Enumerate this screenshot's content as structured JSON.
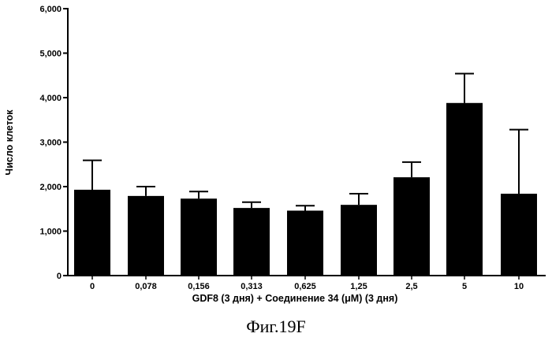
{
  "chart_data": {
    "type": "bar",
    "categories": [
      "0",
      "0,078",
      "0,156",
      "0,313",
      "0,625",
      "1,25",
      "2,5",
      "5",
      "10"
    ],
    "values": [
      1930,
      1790,
      1730,
      1520,
      1460,
      1590,
      2210,
      3880,
      1840
    ],
    "error_upper": [
      2590,
      2000,
      1890,
      1650,
      1570,
      1840,
      2550,
      4540,
      3280
    ],
    "xlabel": "GDF8 (3 дня)  + Соединение 34 (μM) (3 дня)",
    "ylabel": "Число клеток",
    "ylim": [
      0,
      6000
    ],
    "yticks": [
      0,
      1000,
      2000,
      3000,
      4000,
      5000,
      6000
    ],
    "ytick_labels": [
      "0",
      "1,000",
      "2,000",
      "3,000",
      "4,000",
      "5,000",
      "6,000"
    ],
    "grid": false,
    "bar_color": "#000000"
  },
  "caption": "Фиг.19F"
}
